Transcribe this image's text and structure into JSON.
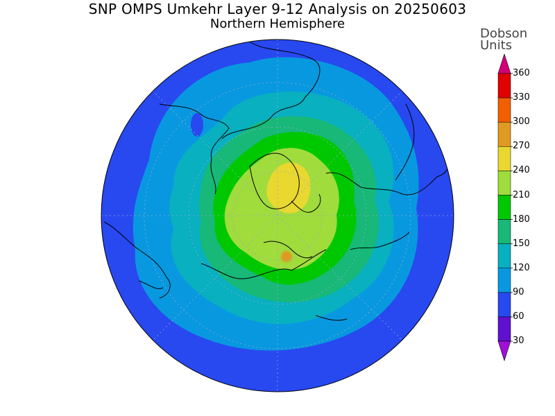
{
  "title": "SNP OMPS Umkehr Layer 9-12 Analysis on 20250603",
  "subtitle": "Northern Hemisphere",
  "colorbar": {
    "unit_line1": "Dobson",
    "unit_line2": "Units",
    "ticks": [
      "360",
      "330",
      "300",
      "270",
      "240",
      "210",
      "180",
      "150",
      "120",
      "90",
      "60",
      "30"
    ],
    "colors": [
      "#d40078",
      "#e00000",
      "#f06000",
      "#e09a20",
      "#e8d830",
      "#a0dc3c",
      "#00c800",
      "#18b878",
      "#08b0c0",
      "#0898e0",
      "#2848f0",
      "#6010d0",
      "#a010d8"
    ]
  },
  "map": {
    "projection": "north-polar-stereographic",
    "quantity_levels_du": [
      60,
      90,
      120,
      150,
      180,
      210,
      240,
      270
    ],
    "level_colors": {
      "60-90": "#2848f0",
      "90-120": "#0898e0",
      "120-150": "#08b0c0",
      "150-180": "#18b878",
      "180-210": "#00c800",
      "210-240": "#a0dc3c",
      "240-270": "#e8d830",
      "270-300": "#e09a20"
    }
  }
}
